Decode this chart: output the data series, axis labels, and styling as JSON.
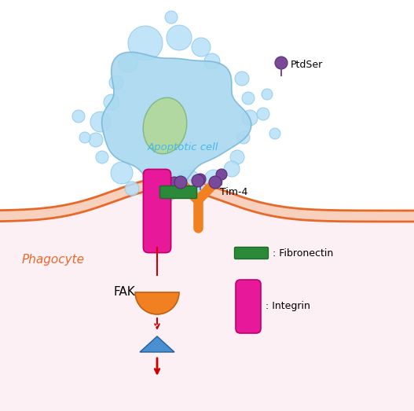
{
  "bg_color": "#ffffff",
  "phagocyte_color": "#e8682a",
  "phagocyte_text": "Phagocyte",
  "phagocyte_text_color": "#e8682a",
  "apoptotic_cell_color": "#a8d8f0",
  "apoptotic_cell_text": "Apoptotic cell",
  "apoptotic_cell_text_color": "#4ab8e8",
  "nucleus_color": "#b0d8a0",
  "bubble_color": "#b8e0f8",
  "bubble_edge": "#88c8e8",
  "ptdser_color": "#7a4a9a",
  "ptdser_text": "PtdSer",
  "tim4_color": "#f08020",
  "tim4_text": "Tim-4",
  "integrin_color": "#e8189a",
  "fibronectin_color": "#2a8a3a",
  "fak_text": "FAK",
  "fak_color": "#f08020",
  "arrow_color": "#cc0000",
  "triangle_color": "#4a90d0",
  "legend_fibronectin_text": ": Fibronectin",
  "legend_integrin_text": ": Integrin",
  "membrane_fill": "#f8e8f0",
  "below_fill": "#fdf0f5"
}
